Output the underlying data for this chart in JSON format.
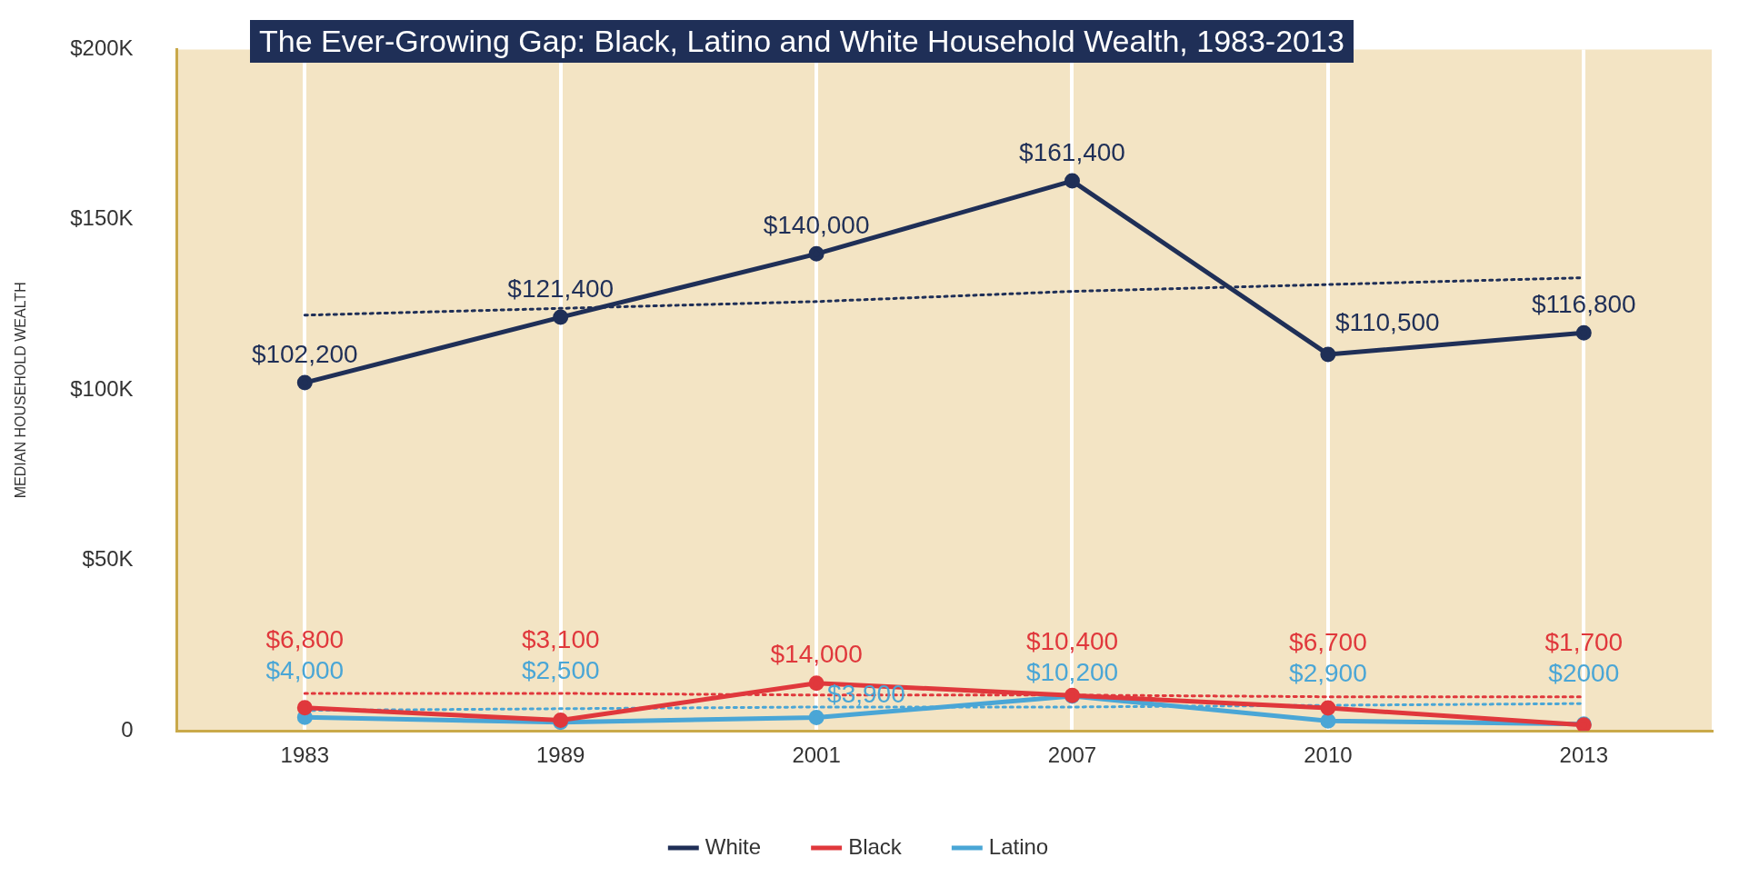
{
  "chart_data": {
    "type": "line",
    "title": "The Ever-Growing Gap: Black, Latino and White Household Wealth, 1983-2013",
    "ylabel": "MEDIAN HOUSEHOLD WEALTH",
    "categories": [
      "1983",
      "1989",
      "2001",
      "2007",
      "2010",
      "2013"
    ],
    "series": [
      {
        "name": "White",
        "color": "#1f2f57",
        "values": [
          102200,
          121400,
          140000,
          161400,
          110500,
          116800
        ],
        "value_labels": [
          "$102,200",
          "$121,400",
          "$140,000",
          "$161,400",
          "$110,500",
          "$116,800"
        ]
      },
      {
        "name": "Black",
        "color": "#e0383c",
        "values": [
          6800,
          3100,
          14000,
          10400,
          6700,
          1700
        ],
        "value_labels": [
          "$6,800",
          "$3,100",
          "$14,000",
          "$10,400",
          "$6,700",
          "$1,700"
        ]
      },
      {
        "name": "Latino",
        "color": "#4aa6d6",
        "values": [
          4000,
          2500,
          3900,
          10200,
          2900,
          2000
        ],
        "value_labels": [
          "$4,000",
          "$2,500",
          "$3,900",
          "$10,200",
          "$2,900",
          "$2000"
        ]
      },
      {
        "type": "line",
        "color": "#1f2f57",
        "line_style": "dotted",
        "marker": "none",
        "values": [
          122000,
          124000,
          126000,
          129000,
          131000,
          133000
        ]
      },
      {
        "type": "line",
        "color": "#e0383c",
        "line_style": "dotted",
        "marker": "none",
        "values": [
          11000,
          11000,
          10500,
          10500,
          10000,
          10000
        ]
      },
      {
        "type": "line",
        "color": "#4aa6d6",
        "line_style": "dotted",
        "marker": "none",
        "values": [
          6000,
          6500,
          7000,
          7000,
          7500,
          8000
        ]
      }
    ],
    "ylim": [
      0,
      200000
    ],
    "yticks": [
      0,
      {
        "value": 50000,
        "label": "$50K"
      },
      {
        "value": 100000,
        "label": "$100K"
      },
      {
        "value": 150000,
        "label": "$150K"
      },
      {
        "value": 200000,
        "label": "$200K"
      }
    ],
    "grid": "x",
    "legend": "bottom",
    "marker": "circle",
    "line_style": "solid"
  }
}
